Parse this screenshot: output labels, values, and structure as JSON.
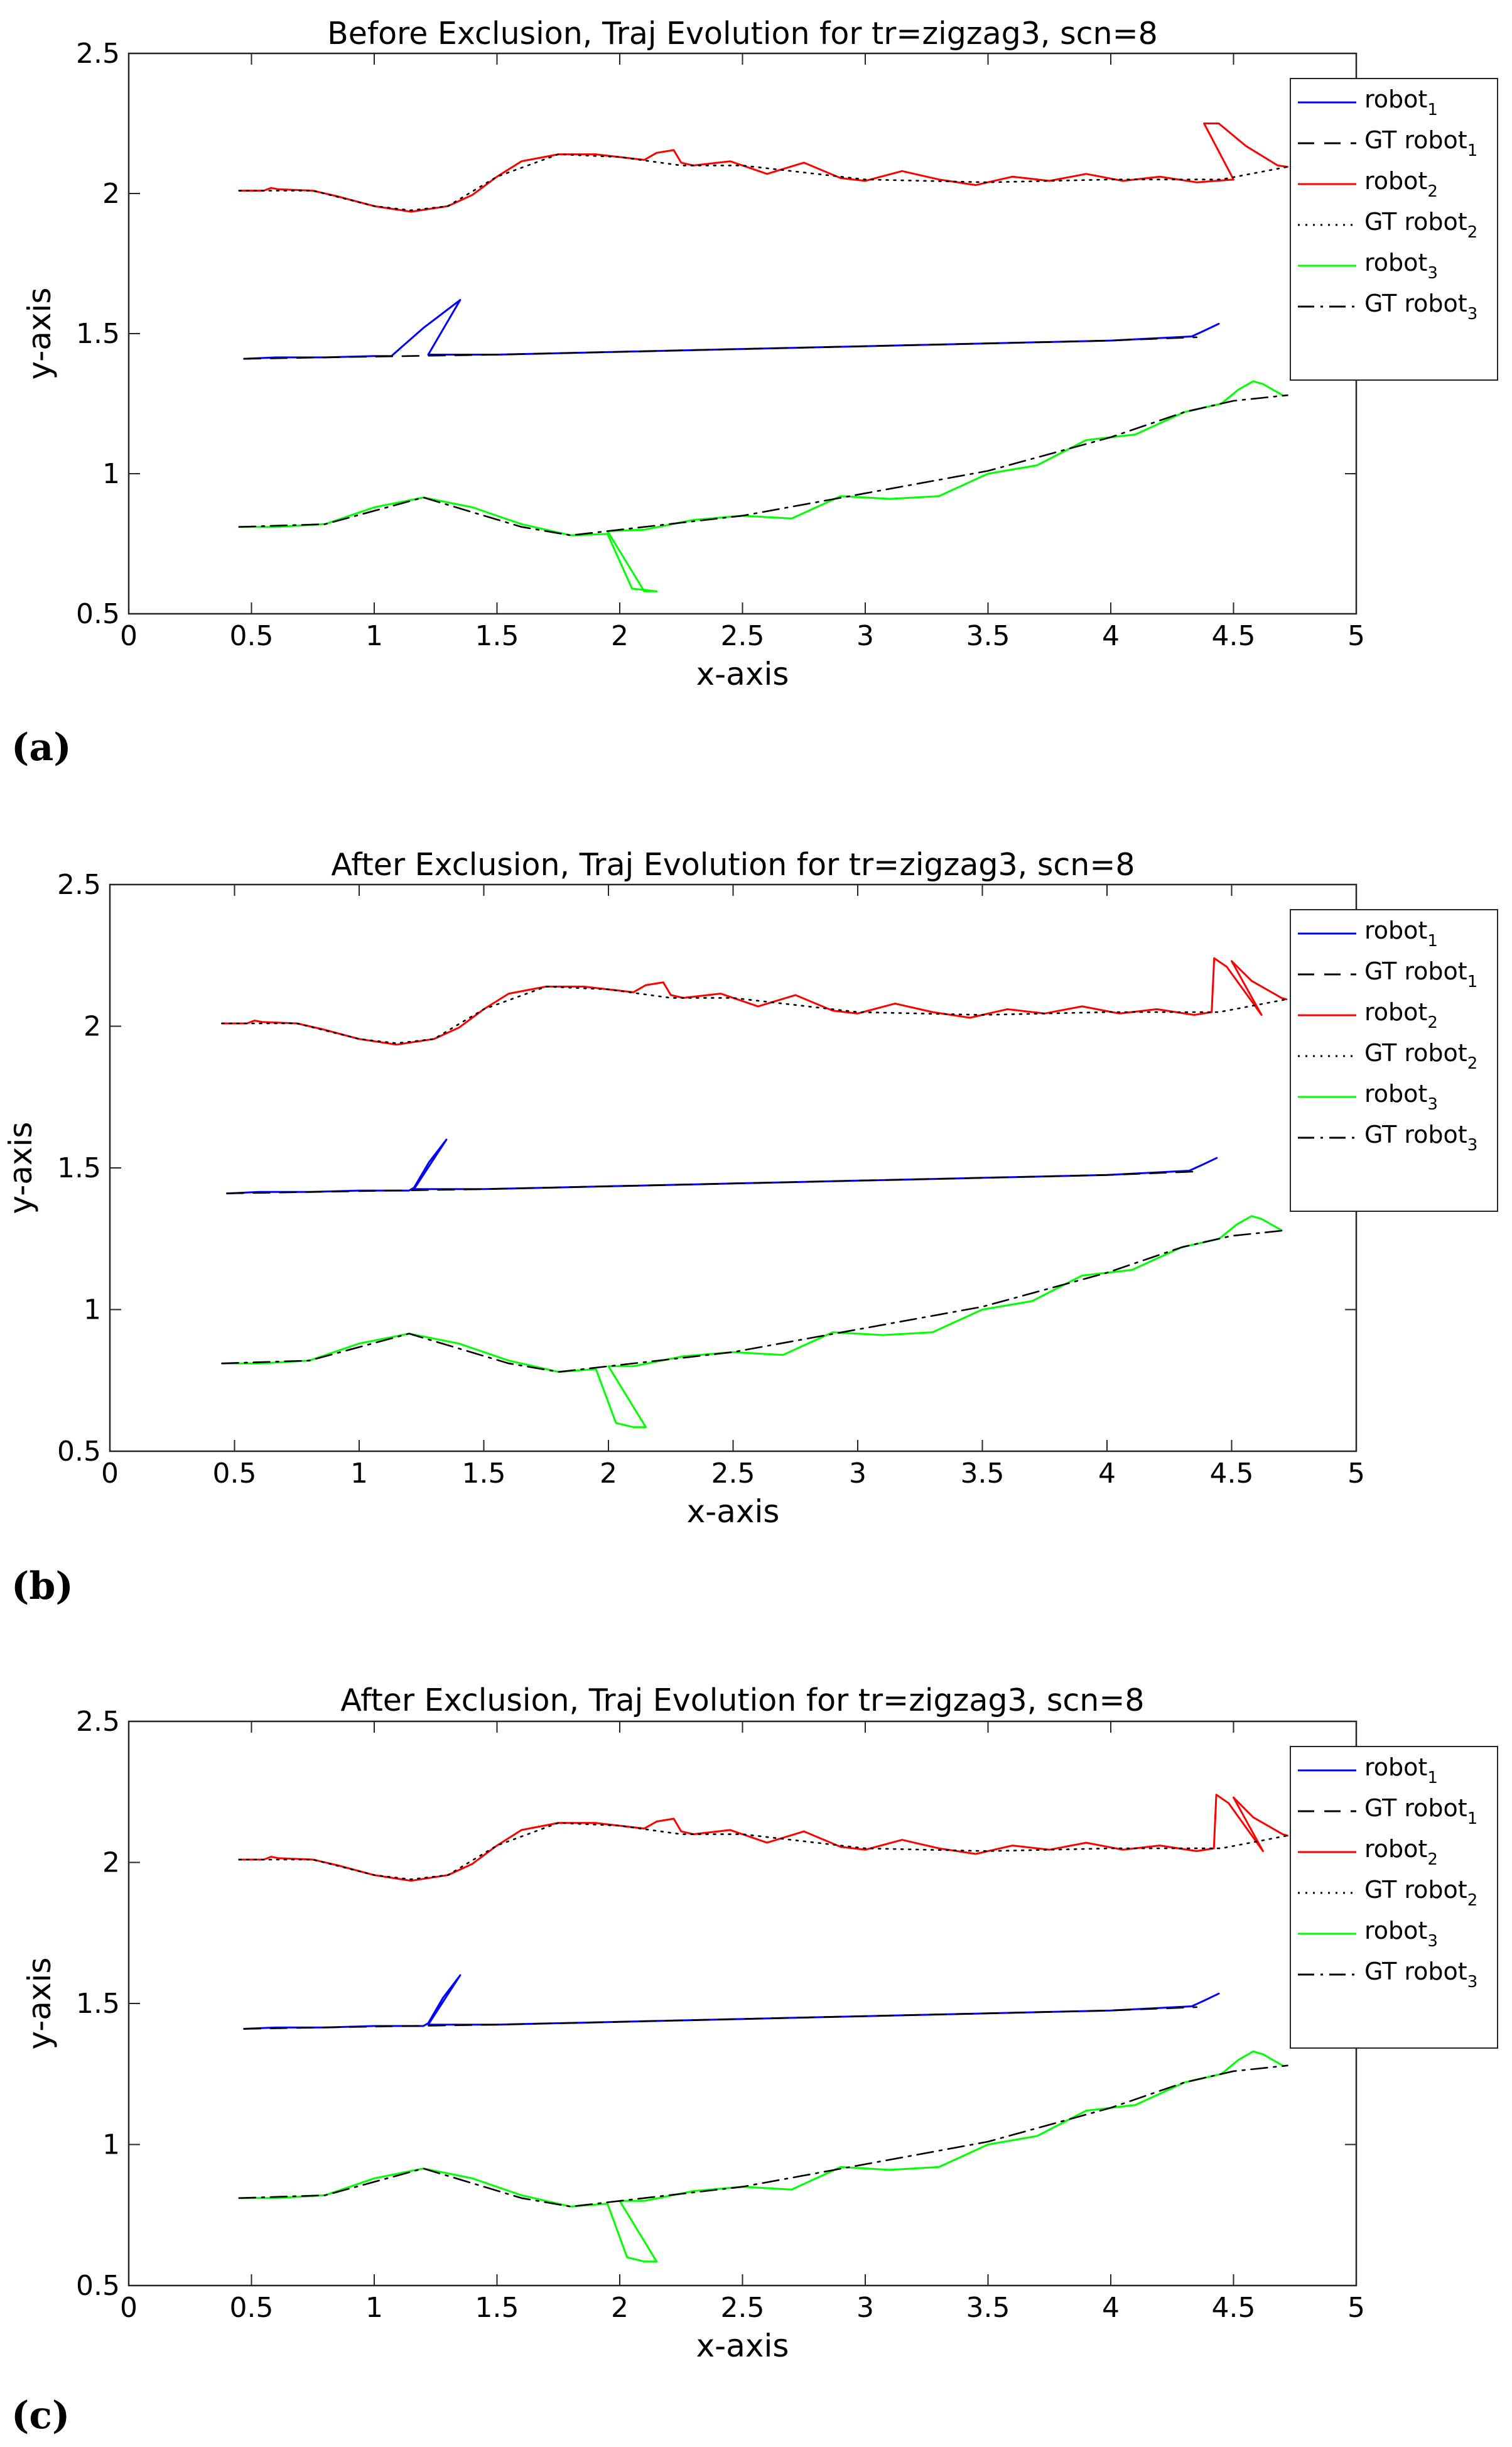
{
  "figure_captions": [
    "(a)",
    "(b)",
    "(c)"
  ],
  "legend_labels": [
    {
      "base": "robot",
      "sub": "1"
    },
    {
      "base": "GT robot",
      "sub": "1"
    },
    {
      "base": "robot",
      "sub": "2"
    },
    {
      "base": "GT robot",
      "sub": "2"
    },
    {
      "base": "robot",
      "sub": "3"
    },
    {
      "base": "GT robot",
      "sub": "3"
    }
  ],
  "colors": {
    "robot1": "#0000ff",
    "robot2": "#ff0000",
    "robot3": "#00ff00",
    "gt": "#000000",
    "axis": "#262626"
  },
  "chart_data": [
    {
      "type": "line",
      "title": "Before Exclusion, Traj Evolution for tr=zigzag3, scn=8",
      "xlabel": "x-axis",
      "ylabel": "y-axis",
      "xlim": [
        0,
        5
      ],
      "ylim": [
        0.5,
        2.5
      ],
      "xticks": [
        "0",
        "0.5",
        "1",
        "1.5",
        "2",
        "2.5",
        "3",
        "3.5",
        "4",
        "4.5",
        "5"
      ],
      "yticks": [
        "0.5",
        "1",
        "1.5",
        "2",
        "2.5"
      ],
      "grid": false,
      "legend_position": "top-right",
      "series": [
        {
          "name": "robot1",
          "style": "solid",
          "color": "#0000ff",
          "x": [
            0.47,
            0.6,
            0.8,
            1.0,
            1.07,
            1.2,
            1.35,
            1.22,
            1.5,
            2.0,
            2.5,
            3.0,
            3.5,
            4.0,
            4.33,
            4.38,
            4.44
          ],
          "y": [
            1.41,
            1.415,
            1.415,
            1.42,
            1.42,
            1.52,
            1.62,
            1.425,
            1.425,
            1.435,
            1.445,
            1.455,
            1.465,
            1.475,
            1.49,
            1.51,
            1.535
          ]
        },
        {
          "name": "GT robot1",
          "style": "dash",
          "color": "#000000",
          "x": [
            0.47,
            1.0,
            1.5,
            2.0,
            2.5,
            3.0,
            3.5,
            4.0,
            4.35
          ],
          "y": [
            1.41,
            1.418,
            1.425,
            1.435,
            1.445,
            1.455,
            1.465,
            1.475,
            1.487
          ]
        },
        {
          "name": "robot2",
          "style": "solid",
          "color": "#ff0000",
          "x": [
            0.45,
            0.55,
            0.58,
            0.61,
            0.75,
            0.85,
            1.0,
            1.15,
            1.3,
            1.4,
            1.5,
            1.6,
            1.75,
            1.9,
            2.0,
            2.1,
            2.15,
            2.22,
            2.25,
            2.3,
            2.45,
            2.6,
            2.75,
            2.9,
            3.0,
            3.15,
            3.3,
            3.45,
            3.6,
            3.75,
            3.9,
            4.05,
            4.2,
            4.35,
            4.5,
            4.38,
            4.44,
            4.55,
            4.68,
            4.72
          ],
          "y": [
            2.01,
            2.01,
            2.02,
            2.015,
            2.01,
            1.99,
            1.955,
            1.935,
            1.955,
            1.995,
            2.06,
            2.115,
            2.14,
            2.14,
            2.13,
            2.12,
            2.145,
            2.155,
            2.11,
            2.1,
            2.115,
            2.07,
            2.11,
            2.055,
            2.045,
            2.08,
            2.05,
            2.03,
            2.06,
            2.045,
            2.07,
            2.045,
            2.06,
            2.04,
            2.05,
            2.25,
            2.25,
            2.17,
            2.1,
            2.095
          ]
        },
        {
          "name": "GT robot2",
          "style": "dot",
          "color": "#000000",
          "x": [
            0.45,
            0.75,
            1.0,
            1.15,
            1.3,
            1.5,
            1.75,
            2.0,
            2.25,
            2.5,
            3.0,
            3.5,
            4.0,
            4.45,
            4.72
          ],
          "y": [
            2.01,
            2.01,
            1.955,
            1.94,
            1.955,
            2.06,
            2.14,
            2.13,
            2.1,
            2.1,
            2.05,
            2.04,
            2.05,
            2.05,
            2.095
          ]
        },
        {
          "name": "robot3",
          "style": "solid",
          "color": "#00ff00",
          "x": [
            0.45,
            0.6,
            0.8,
            1.0,
            1.2,
            1.4,
            1.6,
            1.8,
            1.95,
            2.05,
            2.15,
            2.1,
            1.95,
            2.1,
            2.3,
            2.5,
            2.7,
            2.9,
            3.1,
            3.3,
            3.5,
            3.7,
            3.9,
            4.1,
            4.3,
            4.45,
            4.52,
            4.58,
            4.62,
            4.7
          ],
          "y": [
            0.81,
            0.81,
            0.82,
            0.88,
            0.915,
            0.88,
            0.82,
            0.78,
            0.785,
            0.59,
            0.58,
            0.58,
            0.795,
            0.8,
            0.835,
            0.85,
            0.84,
            0.92,
            0.91,
            0.92,
            1.0,
            1.03,
            1.12,
            1.14,
            1.22,
            1.25,
            1.3,
            1.33,
            1.32,
            1.28
          ]
        },
        {
          "name": "GT robot3",
          "style": "dashdot",
          "color": "#000000",
          "x": [
            0.45,
            0.8,
            1.2,
            1.6,
            1.8,
            2.0,
            2.5,
            3.0,
            3.5,
            4.0,
            4.3,
            4.5,
            4.72
          ],
          "y": [
            0.81,
            0.82,
            0.915,
            0.81,
            0.78,
            0.8,
            0.85,
            0.93,
            1.01,
            1.13,
            1.22,
            1.26,
            1.28
          ]
        }
      ]
    },
    {
      "type": "line",
      "title": "After Exclusion, Traj Evolution for tr=zigzag3, scn=8",
      "xlabel": "x-axis",
      "ylabel": "y-axis",
      "xlim": [
        0,
        5
      ],
      "ylim": [
        0.5,
        2.5
      ],
      "xticks": [
        "0",
        "0.5",
        "1",
        "1.5",
        "2",
        "2.5",
        "3",
        "3.5",
        "4",
        "4.5",
        "5"
      ],
      "yticks": [
        "0.5",
        "1",
        "1.5",
        "2",
        "2.5"
      ],
      "grid": false,
      "legend_position": "top-right",
      "series": [
        {
          "name": "robot1",
          "style": "solid",
          "color": "#0000ff",
          "x": [
            0.47,
            0.6,
            0.8,
            1.0,
            1.2,
            1.22,
            1.28,
            1.35,
            1.22,
            1.5,
            2.0,
            2.5,
            3.0,
            3.5,
            4.0,
            4.33,
            4.38,
            4.44
          ],
          "y": [
            1.41,
            1.415,
            1.415,
            1.42,
            1.42,
            1.43,
            1.52,
            1.6,
            1.425,
            1.425,
            1.435,
            1.445,
            1.455,
            1.465,
            1.475,
            1.49,
            1.51,
            1.535
          ]
        },
        {
          "name": "GT robot1",
          "style": "dash",
          "color": "#000000",
          "x": [
            0.47,
            1.0,
            1.5,
            2.0,
            2.5,
            3.0,
            3.5,
            4.0,
            4.35
          ],
          "y": [
            1.41,
            1.418,
            1.425,
            1.435,
            1.445,
            1.455,
            1.465,
            1.475,
            1.487
          ]
        },
        {
          "name": "robot2",
          "style": "solid",
          "color": "#ff0000",
          "x": [
            0.45,
            0.55,
            0.58,
            0.61,
            0.75,
            0.85,
            1.0,
            1.15,
            1.3,
            1.4,
            1.5,
            1.6,
            1.75,
            1.9,
            2.0,
            2.1,
            2.15,
            2.22,
            2.25,
            2.3,
            2.45,
            2.6,
            2.75,
            2.9,
            3.0,
            3.15,
            3.3,
            3.45,
            3.6,
            3.75,
            3.9,
            4.05,
            4.2,
            4.35,
            4.42,
            4.43,
            4.48,
            4.62,
            4.5,
            4.58,
            4.7,
            4.72
          ],
          "y": [
            2.01,
            2.01,
            2.02,
            2.015,
            2.01,
            1.99,
            1.955,
            1.935,
            1.955,
            1.995,
            2.06,
            2.115,
            2.14,
            2.14,
            2.13,
            2.12,
            2.145,
            2.155,
            2.11,
            2.1,
            2.115,
            2.07,
            2.11,
            2.055,
            2.045,
            2.08,
            2.05,
            2.03,
            2.06,
            2.045,
            2.07,
            2.045,
            2.06,
            2.04,
            2.05,
            2.24,
            2.21,
            2.04,
            2.23,
            2.16,
            2.1,
            2.095
          ]
        },
        {
          "name": "GT robot2",
          "style": "dot",
          "color": "#000000",
          "x": [
            0.45,
            0.75,
            1.0,
            1.15,
            1.3,
            1.5,
            1.75,
            2.0,
            2.25,
            2.5,
            3.0,
            3.5,
            4.0,
            4.45,
            4.72
          ],
          "y": [
            2.01,
            2.01,
            1.955,
            1.94,
            1.955,
            2.06,
            2.14,
            2.13,
            2.1,
            2.1,
            2.05,
            2.04,
            2.05,
            2.05,
            2.095
          ]
        },
        {
          "name": "robot3",
          "style": "solid",
          "color": "#00ff00",
          "x": [
            0.45,
            0.6,
            0.8,
            1.0,
            1.2,
            1.4,
            1.6,
            1.8,
            1.95,
            2.03,
            2.1,
            2.15,
            2.0,
            2.1,
            2.3,
            2.5,
            2.7,
            2.9,
            3.1,
            3.3,
            3.5,
            3.7,
            3.9,
            4.1,
            4.3,
            4.45,
            4.52,
            4.58,
            4.62,
            4.7
          ],
          "y": [
            0.81,
            0.81,
            0.82,
            0.88,
            0.915,
            0.88,
            0.82,
            0.78,
            0.79,
            0.6,
            0.585,
            0.585,
            0.8,
            0.8,
            0.835,
            0.85,
            0.84,
            0.92,
            0.91,
            0.92,
            1.0,
            1.03,
            1.12,
            1.14,
            1.22,
            1.25,
            1.3,
            1.33,
            1.32,
            1.28
          ]
        },
        {
          "name": "GT robot3",
          "style": "dashdot",
          "color": "#000000",
          "x": [
            0.45,
            0.8,
            1.2,
            1.6,
            1.8,
            2.0,
            2.5,
            3.0,
            3.5,
            4.0,
            4.3,
            4.5,
            4.72
          ],
          "y": [
            0.81,
            0.82,
            0.915,
            0.81,
            0.78,
            0.8,
            0.85,
            0.93,
            1.01,
            1.13,
            1.22,
            1.26,
            1.28
          ]
        }
      ]
    },
    {
      "type": "line",
      "title": "After Exclusion, Traj Evolution for tr=zigzag3, scn=8",
      "xlabel": "x-axis",
      "ylabel": "y-axis",
      "xlim": [
        0,
        5
      ],
      "ylim": [
        0.5,
        2.5
      ],
      "xticks": [
        "0",
        "0.5",
        "1",
        "1.5",
        "2",
        "2.5",
        "3",
        "3.5",
        "4",
        "4.5",
        "5"
      ],
      "yticks": [
        "0.5",
        "1",
        "1.5",
        "2",
        "2.5"
      ],
      "grid": false,
      "legend_position": "top-right",
      "series": [
        {
          "name": "robot1",
          "style": "solid",
          "color": "#0000ff",
          "x": [
            0.47,
            0.6,
            0.8,
            1.0,
            1.2,
            1.22,
            1.28,
            1.35,
            1.22,
            1.5,
            2.0,
            2.5,
            3.0,
            3.5,
            4.0,
            4.33,
            4.38,
            4.44
          ],
          "y": [
            1.41,
            1.415,
            1.415,
            1.42,
            1.42,
            1.43,
            1.52,
            1.6,
            1.425,
            1.425,
            1.435,
            1.445,
            1.455,
            1.465,
            1.475,
            1.49,
            1.51,
            1.535
          ]
        },
        {
          "name": "GT robot1",
          "style": "dash",
          "color": "#000000",
          "x": [
            0.47,
            1.0,
            1.5,
            2.0,
            2.5,
            3.0,
            3.5,
            4.0,
            4.35
          ],
          "y": [
            1.41,
            1.418,
            1.425,
            1.435,
            1.445,
            1.455,
            1.465,
            1.475,
            1.487
          ]
        },
        {
          "name": "robot2",
          "style": "solid",
          "color": "#ff0000",
          "x": [
            0.45,
            0.55,
            0.58,
            0.61,
            0.75,
            0.85,
            1.0,
            1.15,
            1.3,
            1.4,
            1.5,
            1.6,
            1.75,
            1.9,
            2.0,
            2.1,
            2.15,
            2.22,
            2.25,
            2.3,
            2.45,
            2.6,
            2.75,
            2.9,
            3.0,
            3.15,
            3.3,
            3.45,
            3.6,
            3.75,
            3.9,
            4.05,
            4.2,
            4.35,
            4.42,
            4.43,
            4.48,
            4.62,
            4.5,
            4.58,
            4.7,
            4.72
          ],
          "y": [
            2.01,
            2.01,
            2.02,
            2.015,
            2.01,
            1.99,
            1.955,
            1.935,
            1.955,
            1.995,
            2.06,
            2.115,
            2.14,
            2.14,
            2.13,
            2.12,
            2.145,
            2.155,
            2.11,
            2.1,
            2.115,
            2.07,
            2.11,
            2.055,
            2.045,
            2.08,
            2.05,
            2.03,
            2.06,
            2.045,
            2.07,
            2.045,
            2.06,
            2.04,
            2.05,
            2.24,
            2.21,
            2.04,
            2.23,
            2.16,
            2.1,
            2.095
          ]
        },
        {
          "name": "GT robot2",
          "style": "dot",
          "color": "#000000",
          "x": [
            0.45,
            0.75,
            1.0,
            1.15,
            1.3,
            1.5,
            1.75,
            2.0,
            2.25,
            2.5,
            3.0,
            3.5,
            4.0,
            4.45,
            4.72
          ],
          "y": [
            2.01,
            2.01,
            1.955,
            1.94,
            1.955,
            2.06,
            2.14,
            2.13,
            2.1,
            2.1,
            2.05,
            2.04,
            2.05,
            2.05,
            2.095
          ]
        },
        {
          "name": "robot3",
          "style": "solid",
          "color": "#00ff00",
          "x": [
            0.45,
            0.6,
            0.8,
            1.0,
            1.2,
            1.4,
            1.6,
            1.8,
            1.95,
            2.03,
            2.1,
            2.15,
            2.0,
            2.1,
            2.3,
            2.5,
            2.7,
            2.9,
            3.1,
            3.3,
            3.5,
            3.7,
            3.9,
            4.1,
            4.3,
            4.45,
            4.52,
            4.58,
            4.62,
            4.7
          ],
          "y": [
            0.81,
            0.81,
            0.82,
            0.88,
            0.915,
            0.88,
            0.82,
            0.78,
            0.79,
            0.6,
            0.585,
            0.585,
            0.8,
            0.8,
            0.835,
            0.85,
            0.84,
            0.92,
            0.91,
            0.92,
            1.0,
            1.03,
            1.12,
            1.14,
            1.22,
            1.25,
            1.3,
            1.33,
            1.32,
            1.28
          ]
        },
        {
          "name": "GT robot3",
          "style": "dashdot",
          "color": "#000000",
          "x": [
            0.45,
            0.8,
            1.2,
            1.6,
            1.8,
            2.0,
            2.5,
            3.0,
            3.5,
            4.0,
            4.3,
            4.5,
            4.72
          ],
          "y": [
            0.81,
            0.82,
            0.915,
            0.81,
            0.78,
            0.8,
            0.85,
            0.93,
            1.01,
            1.13,
            1.22,
            1.26,
            1.28
          ]
        }
      ]
    }
  ]
}
